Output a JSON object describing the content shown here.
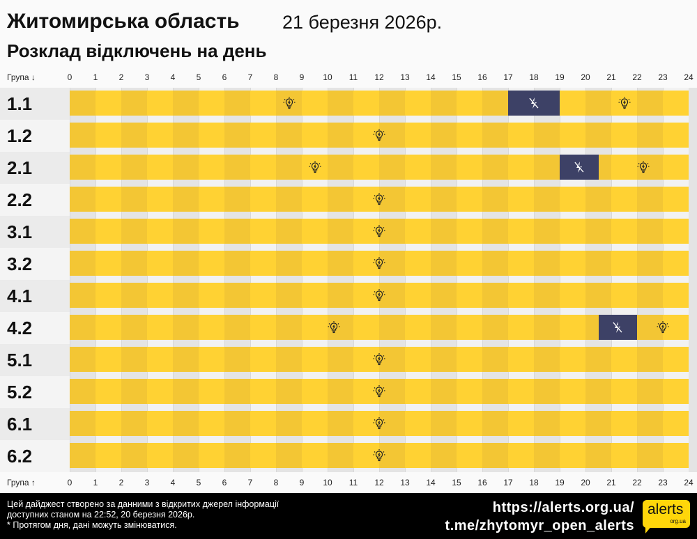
{
  "header": {
    "title": "Житомирська область",
    "date": "21 березня 2026р.",
    "subtitle": "Розклад відключень на день"
  },
  "axis": {
    "top_label": "Група ↓",
    "bottom_label": "Група ↑",
    "ticks": [
      "0",
      "1",
      "2",
      "3",
      "4",
      "5",
      "6",
      "7",
      "8",
      "9",
      "10",
      "11",
      "12",
      "13",
      "14",
      "15",
      "16",
      "17",
      "18",
      "19",
      "20",
      "21",
      "22",
      "23",
      "24"
    ]
  },
  "colors": {
    "on": "#ffd233",
    "on_alt": "#f3c634",
    "off": "#3d4166"
  },
  "chart_data": {
    "type": "bar",
    "xlabel": "",
    "ylabel": "Група",
    "xlim": [
      0,
      24
    ],
    "legend": {
      "on": "lightbulb-icon",
      "off": "no-power-icon"
    },
    "groups": [
      {
        "name": "1.1",
        "off": [
          [
            17,
            19
          ]
        ]
      },
      {
        "name": "1.2",
        "off": []
      },
      {
        "name": "2.1",
        "off": [
          [
            19,
            20.5
          ]
        ]
      },
      {
        "name": "2.2",
        "off": []
      },
      {
        "name": "3.1",
        "off": []
      },
      {
        "name": "3.2",
        "off": []
      },
      {
        "name": "4.1",
        "off": []
      },
      {
        "name": "4.2",
        "off": [
          [
            20.5,
            22
          ]
        ]
      },
      {
        "name": "5.1",
        "off": []
      },
      {
        "name": "5.2",
        "off": []
      },
      {
        "name": "6.1",
        "off": []
      },
      {
        "name": "6.2",
        "off": []
      }
    ]
  },
  "footer": {
    "note_lines": [
      "Цей дайджест створено за данними з відкритих джерел інформації",
      "доступних станом на 22:52, 20 березня 2026р.",
      "* Протягом дня, дані можуть змінюватися."
    ],
    "links": [
      "https://alerts.org.ua/",
      "t.me/zhytomyr_open_alerts"
    ],
    "logo": {
      "text": "alerts",
      "sub": "org.ua"
    }
  }
}
